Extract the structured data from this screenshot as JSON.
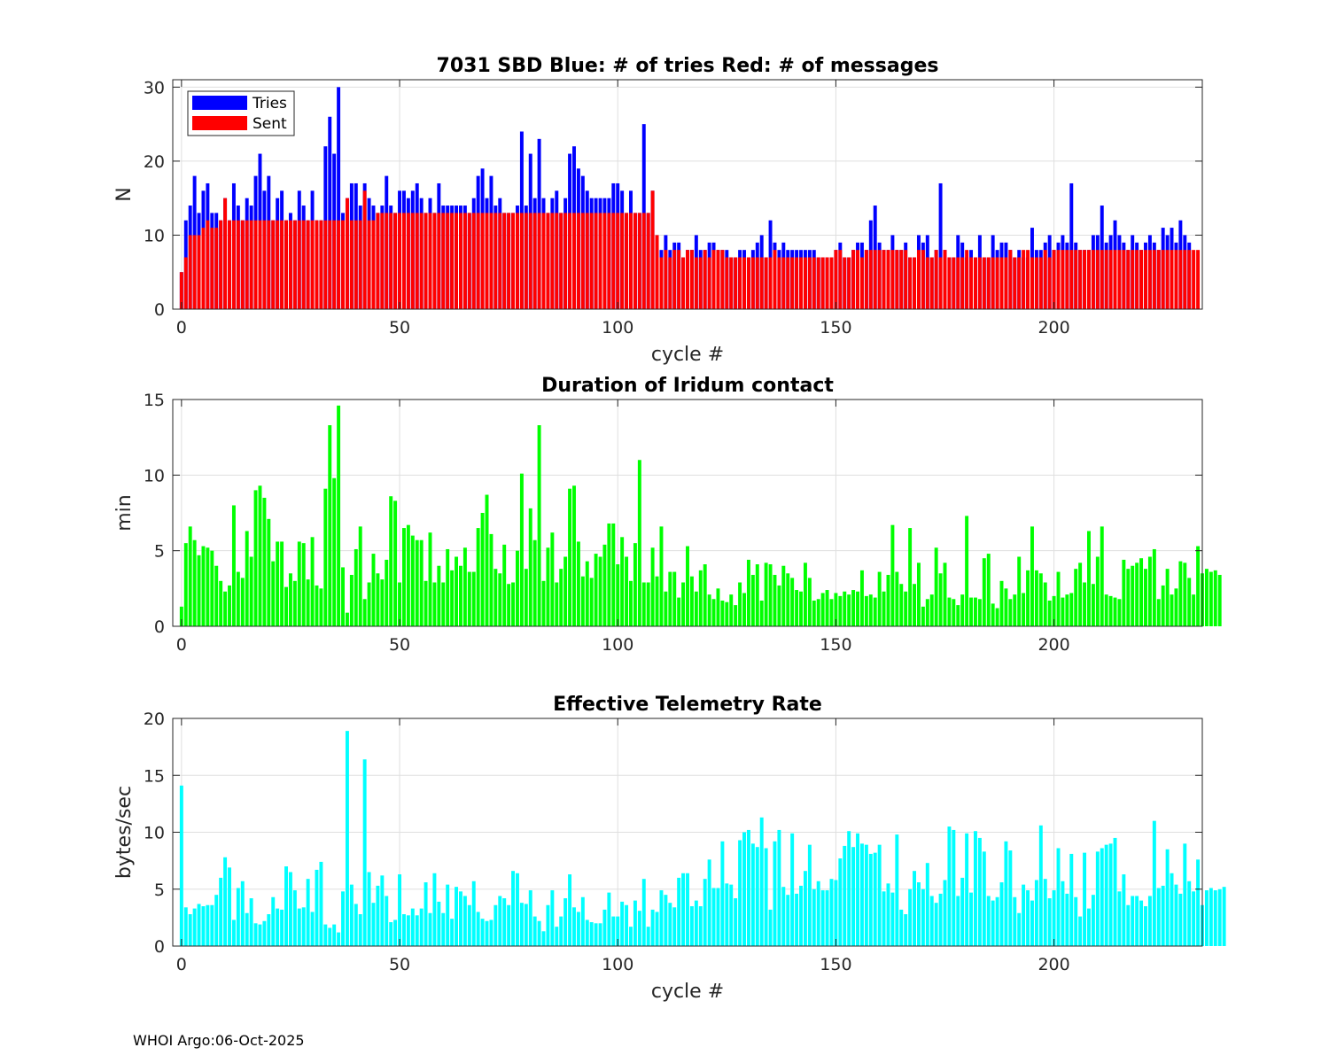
{
  "figure_footer": "WHOI Argo:06-Oct-2025",
  "colors": {
    "tries": "#0000ff",
    "sent": "#ff0000",
    "duration": "#00ff00",
    "rate": "#00ffff"
  },
  "chart_data": [
    {
      "id": "sbd",
      "type": "bar",
      "title": "7031 SBD  Blue: # of tries   Red: # of messages",
      "xlabel": "cycle #",
      "ylabel": "N",
      "xlim": [
        -2,
        234
      ],
      "ylim": [
        0,
        31
      ],
      "xticks": [
        0,
        50,
        100,
        150,
        200
      ],
      "yticks": [
        0,
        10,
        20,
        30
      ],
      "grid": true,
      "legend": {
        "position": "top-left",
        "entries": [
          {
            "label": "Tries",
            "color": "#0000ff"
          },
          {
            "label": "Sent",
            "color": "#ff0000"
          }
        ]
      },
      "series": [
        {
          "name": "Tries",
          "color": "#0000ff",
          "values": [
            5,
            12,
            14,
            18,
            13,
            16,
            17,
            13,
            13,
            12,
            15,
            12,
            17,
            14,
            12,
            15,
            14,
            18,
            21,
            16,
            18,
            12,
            15,
            16,
            12,
            13,
            12,
            16,
            14,
            12,
            16,
            12,
            12,
            22,
            26,
            21,
            30,
            13,
            15,
            17,
            17,
            14,
            17,
            15,
            14,
            13,
            14,
            18,
            14,
            13,
            16,
            16,
            15,
            16,
            17,
            15,
            13,
            15,
            13,
            17,
            14,
            14,
            14,
            14,
            14,
            14,
            13,
            15,
            18,
            19,
            15,
            18,
            14,
            15,
            13,
            13,
            13,
            14,
            24,
            14,
            21,
            15,
            23,
            15,
            13,
            15,
            16,
            13,
            15,
            21,
            22,
            19,
            18,
            16,
            15,
            15,
            15,
            15,
            15,
            17,
            17,
            16,
            13,
            16,
            13,
            13,
            25,
            13,
            16,
            10,
            8,
            10,
            8,
            9,
            9,
            7,
            8,
            8,
            10,
            8,
            8,
            9,
            9,
            8,
            8,
            8,
            7,
            7,
            8,
            8,
            7,
            8,
            9,
            10,
            7,
            12,
            9,
            8,
            9,
            8,
            8,
            8,
            8,
            8,
            8,
            8,
            7,
            7,
            7,
            7,
            8,
            9,
            7,
            7,
            8,
            9,
            9,
            8,
            12,
            14,
            9,
            8,
            8,
            10,
            8,
            8,
            9,
            7,
            7,
            10,
            9,
            10,
            7,
            8,
            17,
            8,
            7,
            7,
            10,
            9,
            7,
            8,
            7,
            10,
            7,
            7,
            10,
            8,
            9,
            9,
            8,
            7,
            8,
            7,
            7,
            11,
            8,
            8,
            9,
            10,
            8,
            9,
            10,
            9,
            17,
            9,
            8,
            8,
            8,
            10,
            10,
            14,
            9,
            10,
            12,
            10,
            9,
            8,
            10,
            9,
            8,
            9,
            10,
            9,
            8,
            11,
            10,
            11,
            9,
            12,
            10,
            9
          ]
        },
        {
          "name": "Sent",
          "color": "#ff0000",
          "values": [
            5,
            7,
            10,
            10,
            10,
            11,
            12,
            11,
            11,
            12,
            15,
            12,
            12,
            12,
            12,
            12,
            12,
            12,
            12,
            12,
            12,
            12,
            12,
            12,
            12,
            12,
            12,
            12,
            12,
            12,
            12,
            12,
            12,
            12,
            12,
            12,
            12,
            12,
            15,
            12,
            12,
            12,
            16,
            12,
            12,
            13,
            13,
            13,
            13,
            13,
            13,
            13,
            13,
            13,
            13,
            13,
            13,
            13,
            13,
            13,
            13,
            13,
            13,
            13,
            13,
            13,
            13,
            13,
            13,
            13,
            13,
            13,
            13,
            13,
            13,
            13,
            13,
            13,
            13,
            13,
            13,
            13,
            13,
            13,
            13,
            13,
            13,
            13,
            13,
            13,
            13,
            13,
            13,
            13,
            13,
            13,
            13,
            13,
            13,
            13,
            13,
            13,
            13,
            13,
            13,
            13,
            13,
            13,
            16,
            10,
            7,
            8,
            7,
            8,
            8,
            7,
            8,
            8,
            7,
            7,
            8,
            7,
            8,
            8,
            8,
            7,
            7,
            7,
            7,
            7,
            7,
            7,
            7,
            7,
            7,
            7,
            8,
            7,
            7,
            7,
            7,
            7,
            7,
            7,
            7,
            7,
            7,
            7,
            7,
            7,
            8,
            8,
            7,
            7,
            8,
            8,
            7,
            8,
            8,
            8,
            8,
            8,
            8,
            8,
            8,
            8,
            8,
            7,
            7,
            8,
            8,
            7,
            7,
            8,
            7,
            8,
            7,
            7,
            7,
            7,
            8,
            7,
            7,
            7,
            7,
            7,
            7,
            7,
            7,
            7,
            8,
            7,
            7,
            8,
            8,
            7,
            7,
            7,
            8,
            7,
            8,
            8,
            8,
            8,
            8,
            8,
            8,
            8,
            8,
            8,
            8,
            8,
            8,
            8,
            8,
            8,
            8,
            8,
            8,
            8,
            8,
            8,
            8,
            8,
            8,
            8,
            8,
            8,
            8,
            8,
            8,
            8,
            8,
            8
          ]
        }
      ]
    },
    {
      "id": "duration",
      "type": "bar",
      "title": "Duration of Iridum contact",
      "xlabel": "",
      "ylabel": "min",
      "xlim": [
        -2,
        234
      ],
      "ylim": [
        0,
        15
      ],
      "xticks": [
        0,
        50,
        100,
        150,
        200
      ],
      "yticks": [
        0,
        5,
        10,
        15
      ],
      "grid": true,
      "series": [
        {
          "name": "Duration",
          "color": "#00ff00",
          "values": [
            1.3,
            5.5,
            6.6,
            5.7,
            4.7,
            5.3,
            5.2,
            5.0,
            4.0,
            3.0,
            2.3,
            2.7,
            8.0,
            3.6,
            3.2,
            6.3,
            4.6,
            9.0,
            9.3,
            8.5,
            7.1,
            4.3,
            5.6,
            5.6,
            2.6,
            3.5,
            3.0,
            5.6,
            5.5,
            3.1,
            5.9,
            2.7,
            2.5,
            9.1,
            13.3,
            9.8,
            14.6,
            3.9,
            0.9,
            3.4,
            5.1,
            6.6,
            1.8,
            2.9,
            4.8,
            3.5,
            3.1,
            4.4,
            8.6,
            8.3,
            2.9,
            6.5,
            6.7,
            6.0,
            5.7,
            5.7,
            3.0,
            6.2,
            2.9,
            4.0,
            2.9,
            5.1,
            3.7,
            4.6,
            4.0,
            5.2,
            3.6,
            3.6,
            6.5,
            7.5,
            8.7,
            6.1,
            3.8,
            3.5,
            5.4,
            2.8,
            2.9,
            5.0,
            10.1,
            3.8,
            7.8,
            5.7,
            13.3,
            3.0,
            5.2,
            6.2,
            2.9,
            3.8,
            4.6,
            9.1,
            9.3,
            5.6,
            3.3,
            4.3,
            3.2,
            4.8,
            4.6,
            5.4,
            6.8,
            6.8,
            4.1,
            5.9,
            4.6,
            3.0,
            5.5,
            11.0,
            2.9,
            2.9,
            5.2,
            3.3,
            6.6,
            2.3,
            3.6,
            3.6,
            1.9,
            2.9,
            5.3,
            3.3,
            2.3,
            3.7,
            4.1,
            2.1,
            1.8,
            2.5,
            1.7,
            1.6,
            2.1,
            1.4,
            2.9,
            2.2,
            4.4,
            3.4,
            4.1,
            1.7,
            4.2,
            4.1,
            3.4,
            2.7,
            4.0,
            3.5,
            3.2,
            2.4,
            2.3,
            4.2,
            3.2,
            1.7,
            1.8,
            2.2,
            2.4,
            1.8,
            2.2,
            2.0,
            2.3,
            2.1,
            2.4,
            2.3,
            3.7,
            2.0,
            2.1,
            1.9,
            3.6,
            2.3,
            3.4,
            6.7,
            3.6,
            2.8,
            2.3,
            6.5,
            2.8,
            4.2,
            1.3,
            1.8,
            2.1,
            5.2,
            3.5,
            4.2,
            1.9,
            1.8,
            1.4,
            2.1,
            7.3,
            1.9,
            1.9,
            1.8,
            4.5,
            4.8,
            1.5,
            1.2,
            3.0,
            2.5,
            1.8,
            2.1,
            4.6,
            2.2,
            3.7,
            6.6,
            3.7,
            3.5,
            2.9,
            1.7,
            2.0,
            3.6,
            1.9,
            2.1,
            2.2,
            3.8,
            4.2,
            2.9,
            6.3,
            2.8,
            4.6,
            6.6,
            2.1,
            2.0,
            1.9,
            1.8,
            4.4,
            3.8,
            4.0,
            4.2,
            4.5,
            3.8,
            4.6,
            5.1,
            1.8,
            2.7,
            3.8,
            2.1,
            2.5,
            4.3,
            4.2,
            3.2,
            2.1,
            5.3,
            3.5,
            3.8,
            3.6,
            3.7,
            3.4
          ]
        }
      ]
    },
    {
      "id": "rate",
      "type": "bar",
      "title": "Effective Telemetry Rate",
      "xlabel": "cycle #",
      "ylabel": "bytes/sec",
      "xlim": [
        -2,
        234
      ],
      "ylim": [
        0,
        20
      ],
      "xticks": [
        0,
        50,
        100,
        150,
        200
      ],
      "yticks": [
        0,
        5,
        10,
        15,
        20
      ],
      "grid": true,
      "series": [
        {
          "name": "Rate",
          "color": "#00ffff",
          "values": [
            14.1,
            3.4,
            2.8,
            3.3,
            3.7,
            3.5,
            3.6,
            3.6,
            4.5,
            6.0,
            7.8,
            6.9,
            2.3,
            5.1,
            5.7,
            2.9,
            4.2,
            2.0,
            1.9,
            2.2,
            2.8,
            4.3,
            3.3,
            3.2,
            7.0,
            6.5,
            4.9,
            3.3,
            3.4,
            5.9,
            3.0,
            6.7,
            7.4,
            1.9,
            1.6,
            1.9,
            1.2,
            4.8,
            18.9,
            5.4,
            3.7,
            2.8,
            16.4,
            6.5,
            3.8,
            5.3,
            6.2,
            4.4,
            2.1,
            2.3,
            6.3,
            2.8,
            2.7,
            3.3,
            2.7,
            3.3,
            5.6,
            2.9,
            6.4,
            3.9,
            2.9,
            5.4,
            2.4,
            5.2,
            4.8,
            4.4,
            3.6,
            5.7,
            3.0,
            2.4,
            2.2,
            2.3,
            3.6,
            4.4,
            4.2,
            3.6,
            6.6,
            6.4,
            3.8,
            3.7,
            4.9,
            2.6,
            2.2,
            1.3,
            3.6,
            4.9,
            1.7,
            2.6,
            4.2,
            6.3,
            3.4,
            3.0,
            4.3,
            2.3,
            2.1,
            2.0,
            2.0,
            3.2,
            4.7,
            2.6,
            2.6,
            3.9,
            3.6,
            1.7,
            4.0,
            3.1,
            5.9,
            1.7,
            3.2,
            3.0,
            4.9,
            4.5,
            3.8,
            3.4,
            6.0,
            6.4,
            6.4,
            3.5,
            4.0,
            3.5,
            5.9,
            7.6,
            5.1,
            5.1,
            9.2,
            5.5,
            5.4,
            4.2,
            9.3,
            10.0,
            10.2,
            9.0,
            8.7,
            11.3,
            8.6,
            3.2,
            9.2,
            10.2,
            5.2,
            4.5,
            9.9,
            4.6,
            5.3,
            6.6,
            8.9,
            5.0,
            5.7,
            4.9,
            4.9,
            5.9,
            5.8,
            7.7,
            8.8,
            10.1,
            8.7,
            9.9,
            9.0,
            8.9,
            8.1,
            8.2,
            8.9,
            4.8,
            5.5,
            4.7,
            9.8,
            3.2,
            2.8,
            5.0,
            6.6,
            5.6,
            5.0,
            7.3,
            4.4,
            3.8,
            4.6,
            5.8,
            10.5,
            10.2,
            4.4,
            6.0,
            9.9,
            4.7,
            10.1,
            9.5,
            8.3,
            4.4,
            4.0,
            4.3,
            5.6,
            9.2,
            8.4,
            4.3,
            2.9,
            5.4,
            4.9,
            4.0,
            5.8,
            10.6,
            5.9,
            4.2,
            4.9,
            8.6,
            5.7,
            4.6,
            8.1,
            4.3,
            2.6,
            8.2,
            3.3,
            4.5,
            8.3,
            8.6,
            8.9,
            9.0,
            9.5,
            4.8,
            6.3,
            3.6,
            4.4,
            4.4,
            4.0,
            3.5,
            4.4,
            11.0,
            5.1,
            5.3,
            8.5,
            6.4,
            5.4,
            4.6,
            9.0,
            5.7,
            4.8,
            7.6,
            3.6,
            4.9,
            5.1,
            4.9,
            5.0,
            5.2
          ]
        }
      ]
    }
  ]
}
